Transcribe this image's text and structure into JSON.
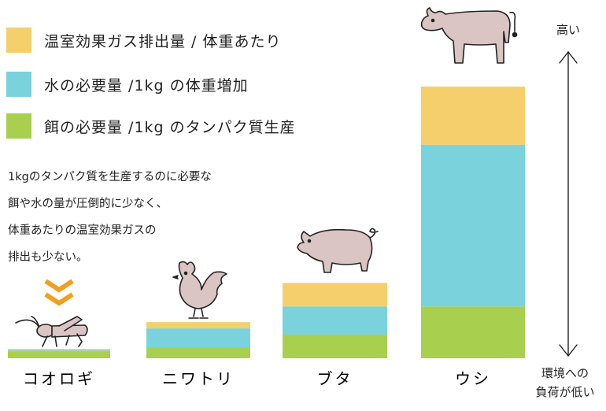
{
  "chart_data": {
    "type": "bar",
    "stacked": true,
    "categories": [
      "コオロギ",
      "ニワトリ",
      "ブタ",
      "ウシ"
    ],
    "series": [
      {
        "name": "餌の必要量 /1kg のタンパク質生産",
        "color": "#a8cf4e",
        "values": [
          2,
          3.5,
          7.5,
          16.5
        ]
      },
      {
        "name": "水の必要量 /1kg の体重増加",
        "color": "#7ad2dc",
        "values": [
          0.5,
          6,
          9,
          51.5
        ]
      },
      {
        "name": "温室効果ガス排出量 / 体重あたり",
        "color": "#f5cf6b",
        "values": [
          0.5,
          2,
          7.5,
          18.5
        ]
      }
    ],
    "legend_order": [
      2,
      1,
      0
    ],
    "legend_position": "top-left",
    "ylim": [
      0,
      92
    ],
    "grid": false,
    "annotation": [
      "1kgのタンパク質を生産するのに必要な",
      "餌や水の量が圧倒的に少なく、",
      "体重あたりの温室効果ガスの",
      "排出も少ない。"
    ],
    "axis_top_label": "高い",
    "axis_bottom_label": [
      "環境への",
      "負荷が低い"
    ]
  },
  "icons": [
    "cricket-icon",
    "chicken-icon",
    "pig-icon",
    "cow-icon",
    "double-chevron-icon",
    "arrow-icon"
  ],
  "colors": {
    "chevron": "#f0a020",
    "animal_fill": "#dbc4c4",
    "animal_stroke": "#222222"
  }
}
